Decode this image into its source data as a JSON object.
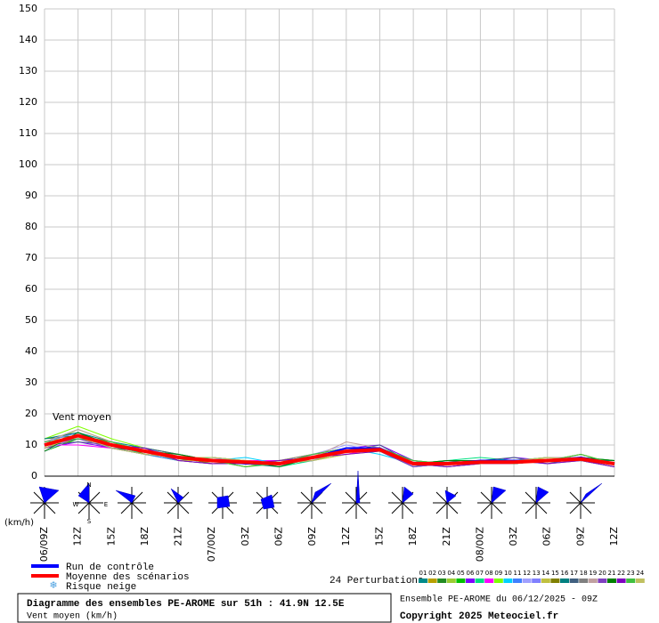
{
  "chart_data": {
    "type": "line",
    "annotation": "Vent moyen",
    "y_unit": "(km/h)",
    "categories": [
      "06/09Z",
      "12Z",
      "15Z",
      "18Z",
      "21Z",
      "07/00Z",
      "03Z",
      "06Z",
      "09Z",
      "12Z",
      "15Z",
      "18Z",
      "21Z",
      "08/00Z",
      "03Z",
      "06Z",
      "09Z",
      "12Z"
    ],
    "ylim": [
      0,
      150
    ],
    "yticks": [
      0,
      10,
      20,
      30,
      40,
      50,
      60,
      70,
      80,
      90,
      100,
      110,
      120,
      130,
      140,
      150
    ],
    "grid": true,
    "series": [
      {
        "name": "01",
        "color": "#008b8b",
        "values": [
          11,
          14,
          11,
          9,
          7,
          5,
          5,
          4,
          6,
          9,
          9,
          5,
          4,
          5,
          5,
          5,
          6,
          4
        ]
      },
      {
        "name": "02",
        "color": "#b8a000",
        "values": [
          9,
          12,
          10,
          8,
          5,
          4,
          4,
          5,
          7,
          8,
          9,
          4,
          3,
          4,
          5,
          6,
          5,
          3
        ]
      },
      {
        "name": "03",
        "color": "#228b22",
        "values": [
          12,
          13,
          9,
          7,
          6,
          6,
          5,
          3,
          6,
          9,
          8,
          3,
          4,
          5,
          4,
          5,
          6,
          5
        ]
      },
      {
        "name": "04",
        "color": "#9acd32",
        "values": [
          10,
          15,
          11,
          8,
          7,
          4,
          4,
          4,
          5,
          7,
          9,
          4,
          5,
          4,
          4,
          5,
          7,
          4
        ]
      },
      {
        "name": "05",
        "color": "#00c000",
        "values": [
          8,
          12,
          10,
          9,
          5,
          5,
          3,
          5,
          6,
          8,
          8,
          4,
          4,
          5,
          5,
          4,
          5,
          3
        ]
      },
      {
        "name": "06",
        "color": "#8000ff",
        "values": [
          9,
          11,
          9,
          8,
          6,
          5,
          4,
          4,
          7,
          9,
          10,
          5,
          3,
          4,
          6,
          5,
          5,
          4
        ]
      },
      {
        "name": "07",
        "color": "#00e080",
        "values": [
          11,
          14,
          10,
          7,
          5,
          6,
          5,
          3,
          5,
          8,
          8,
          4,
          5,
          6,
          5,
          6,
          6,
          5
        ]
      },
      {
        "name": "08",
        "color": "#ff00ff",
        "values": [
          10,
          10,
          9,
          8,
          6,
          4,
          5,
          5,
          6,
          7,
          9,
          3,
          4,
          4,
          4,
          5,
          5,
          3
        ]
      },
      {
        "name": "09",
        "color": "#80ff00",
        "values": [
          12,
          16,
          12,
          9,
          7,
          5,
          4,
          4,
          6,
          8,
          8,
          5,
          4,
          5,
          5,
          5,
          6,
          4
        ]
      },
      {
        "name": "10",
        "color": "#00d0ff",
        "values": [
          9,
          13,
          10,
          8,
          6,
          5,
          6,
          4,
          5,
          9,
          7,
          4,
          3,
          4,
          5,
          6,
          5,
          3
        ]
      },
      {
        "name": "11",
        "color": "#4080ff",
        "values": [
          10,
          12,
          11,
          7,
          5,
          4,
          4,
          5,
          6,
          8,
          9,
          4,
          4,
          5,
          4,
          5,
          6,
          4
        ]
      },
      {
        "name": "12",
        "color": "#a0a0ff",
        "values": [
          8,
          13,
          9,
          8,
          7,
          5,
          5,
          3,
          7,
          10,
          8,
          3,
          5,
          4,
          5,
          4,
          5,
          5
        ]
      },
      {
        "name": "13",
        "color": "#8080ff",
        "values": [
          11,
          14,
          10,
          9,
          6,
          6,
          4,
          4,
          6,
          8,
          9,
          4,
          4,
          5,
          5,
          5,
          6,
          4
        ]
      },
      {
        "name": "14",
        "color": "#c0c040",
        "values": [
          10,
          12,
          10,
          8,
          5,
          5,
          3,
          5,
          5,
          7,
          8,
          5,
          3,
          4,
          4,
          6,
          5,
          3
        ]
      },
      {
        "name": "15",
        "color": "#808000",
        "values": [
          9,
          13,
          11,
          7,
          6,
          4,
          5,
          4,
          6,
          9,
          9,
          4,
          4,
          5,
          5,
          5,
          7,
          4
        ]
      },
      {
        "name": "16",
        "color": "#008080",
        "values": [
          12,
          14,
          9,
          8,
          6,
          5,
          4,
          3,
          6,
          8,
          8,
          3,
          5,
          4,
          4,
          5,
          5,
          5
        ]
      },
      {
        "name": "17",
        "color": "#406080",
        "values": [
          10,
          11,
          10,
          9,
          7,
          5,
          5,
          4,
          5,
          8,
          10,
          4,
          4,
          5,
          6,
          4,
          6,
          4
        ]
      },
      {
        "name": "18",
        "color": "#808080",
        "values": [
          9,
          13,
          10,
          8,
          5,
          4,
          4,
          5,
          7,
          9,
          8,
          5,
          3,
          4,
          5,
          5,
          5,
          3
        ]
      },
      {
        "name": "19",
        "color": "#c0a0a0",
        "values": [
          11,
          15,
          11,
          8,
          6,
          6,
          5,
          4,
          6,
          11,
          9,
          4,
          4,
          5,
          5,
          6,
          6,
          4
        ]
      },
      {
        "name": "20",
        "color": "#8040c0",
        "values": [
          10,
          12,
          9,
          7,
          6,
          5,
          4,
          4,
          5,
          8,
          8,
          3,
          4,
          4,
          4,
          5,
          5,
          4
        ]
      },
      {
        "name": "21",
        "color": "#008000",
        "values": [
          8,
          14,
          10,
          8,
          7,
          5,
          5,
          3,
          6,
          8,
          9,
          4,
          5,
          5,
          5,
          5,
          6,
          5
        ]
      },
      {
        "name": "22",
        "color": "#8000c0",
        "values": [
          10,
          13,
          10,
          9,
          5,
          4,
          4,
          5,
          6,
          7,
          8,
          4,
          3,
          4,
          5,
          4,
          5,
          3
        ]
      },
      {
        "name": "23",
        "color": "#40c040",
        "values": [
          11,
          12,
          11,
          8,
          6,
          5,
          3,
          4,
          7,
          9,
          9,
          5,
          4,
          5,
          4,
          5,
          7,
          4
        ]
      },
      {
        "name": "24",
        "color": "#c0c060",
        "values": [
          9,
          13,
          9,
          7,
          6,
          6,
          5,
          4,
          5,
          8,
          8,
          4,
          4,
          4,
          5,
          6,
          5,
          4
        ]
      },
      {
        "name": "Run de contrôle",
        "color": "#0000ff",
        "values": [
          10,
          13,
          10,
          8,
          6,
          5,
          4,
          4,
          6,
          9,
          9,
          4,
          4,
          5,
          5,
          5,
          6,
          4
        ]
      },
      {
        "name": "Moyenne des scénarios",
        "color": "#ff0000",
        "values": [
          10,
          13,
          10,
          8,
          6,
          5,
          4.5,
          4,
          6,
          8,
          8.5,
          4,
          4,
          4.5,
          4.5,
          5,
          5.5,
          4
        ]
      }
    ],
    "legend_extra": "Risque neige",
    "perturbations_label": "24 Perturbations",
    "compass_labels": [
      "N",
      "W",
      "E",
      "S"
    ],
    "title": "Diagramme des ensembles PE-AROME sur 51h : 41.9N 12.5E",
    "subtitle": "Vent moyen (km/h)",
    "run_info": "Ensemble PE-AROME du 06/12/2025 - 09Z",
    "copyright": "Copyright 2025 Meteociel.fr"
  }
}
